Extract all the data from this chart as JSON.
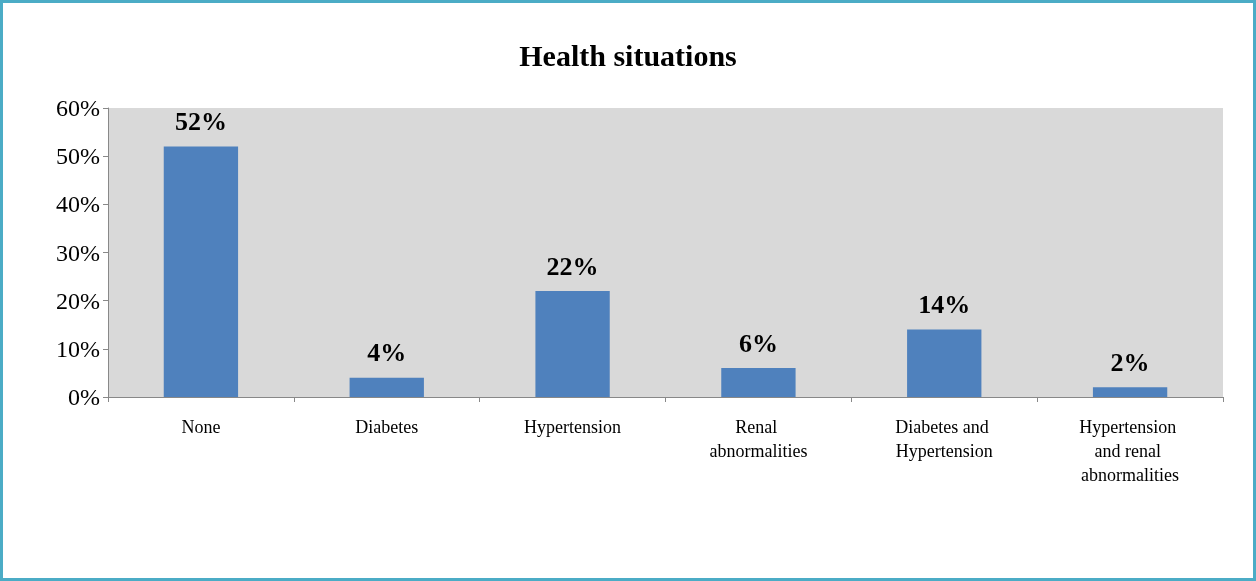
{
  "chart_data": {
    "type": "bar",
    "title": "Health situations",
    "categories": [
      "None",
      "Diabetes",
      "Hypertension",
      "Renal abnormalities",
      "Diabetes and Hypertension",
      "Hypertension and renal abnormalities"
    ],
    "values": [
      52,
      4,
      22,
      6,
      14,
      2
    ],
    "value_labels": [
      "52%",
      "4%",
      "22%",
      "6%",
      "14%",
      "2%"
    ],
    "color": "#4f81bd",
    "ylim": [
      0,
      60
    ],
    "yticks": [
      {
        "value": 0,
        "label": "0%"
      },
      {
        "value": 10,
        "label": "10%"
      },
      {
        "value": 20,
        "label": "20%"
      },
      {
        "value": 30,
        "label": "30%"
      },
      {
        "value": 40,
        "label": "40%"
      },
      {
        "value": 50,
        "label": "50%"
      },
      {
        "value": 60,
        "label": "60%"
      }
    ],
    "grid": false
  }
}
